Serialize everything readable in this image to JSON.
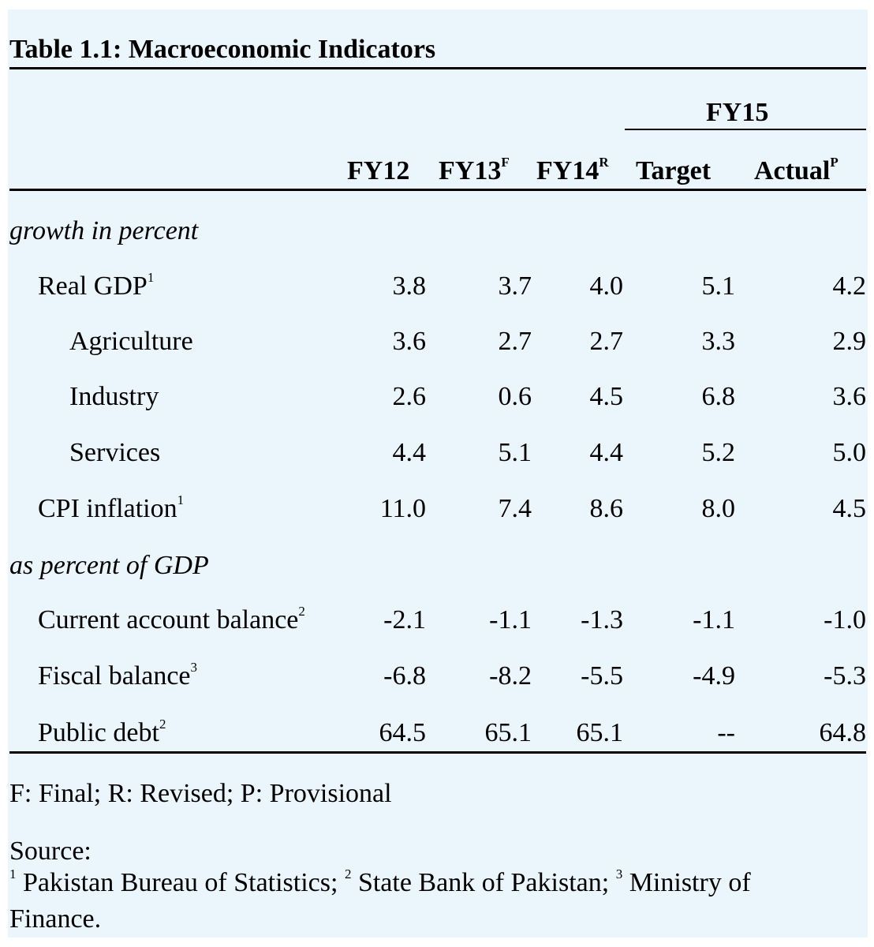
{
  "title": "Table 1.1: Macroeconomic Indicators",
  "group_header": "FY15",
  "columns": [
    {
      "label": "FY12",
      "sup": ""
    },
    {
      "label": "FY13",
      "sup": "F"
    },
    {
      "label": "FY14",
      "sup": "R"
    },
    {
      "label": "Target",
      "sup": ""
    },
    {
      "label": "Actual",
      "sup": "P"
    }
  ],
  "sections": [
    {
      "label": "growth in percent"
    },
    {
      "label": "as percent of GDP"
    }
  ],
  "rows": [
    {
      "label": "Real GDP",
      "sup": "1",
      "values": [
        "3.8",
        "3.7",
        "4.0",
        "5.1",
        "4.2"
      ]
    },
    {
      "label": "Agriculture",
      "sup": "",
      "values": [
        "3.6",
        "2.7",
        "2.7",
        "3.3",
        "2.9"
      ]
    },
    {
      "label": "Industry",
      "sup": "",
      "values": [
        "2.6",
        "0.6",
        "4.5",
        "6.8",
        "3.6"
      ]
    },
    {
      "label": "Services",
      "sup": "",
      "values": [
        "4.4",
        "5.1",
        "4.4",
        "5.2",
        "5.0"
      ]
    },
    {
      "label": "CPI inflation",
      "sup": "1",
      "values": [
        "11.0",
        "7.4",
        "8.6",
        "8.0",
        "4.5"
      ]
    },
    {
      "label": "Current account balance",
      "sup": "2",
      "values": [
        "-2.1",
        "-1.1",
        "-1.3",
        "-1.1",
        "-1.0"
      ]
    },
    {
      "label": "Fiscal balance",
      "sup": "3",
      "values": [
        "-6.8",
        "-8.2",
        "-5.5",
        "-4.9",
        "-5.3"
      ]
    },
    {
      "label": "Public debt",
      "sup": "2",
      "values": [
        "64.5",
        "65.1",
        "65.1",
        "--",
        "64.8"
      ]
    }
  ],
  "notes": {
    "legend": "F: Final; R: Revised; P: Provisional",
    "source_label": "Source:",
    "source_items": [
      {
        "sup": "1",
        "text": " Pakistan Bureau of Statistics; "
      },
      {
        "sup": "2",
        "text": " State Bank of Pakistan; "
      },
      {
        "sup": "3",
        "text": " Ministry of"
      }
    ],
    "source_tail": "Finance."
  }
}
